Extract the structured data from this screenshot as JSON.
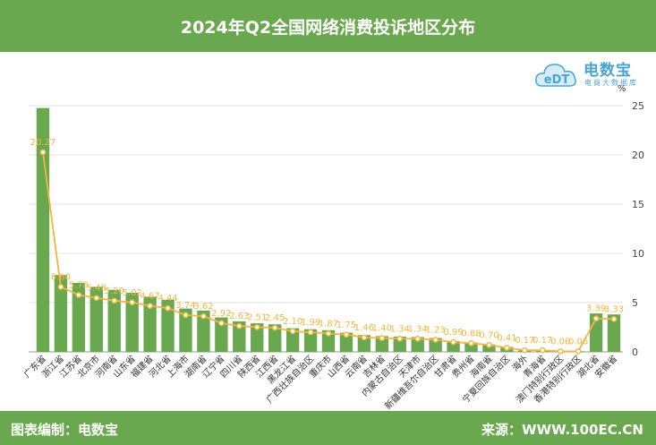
{
  "header": {
    "title": "2024年Q2全国网络消费投诉地区分布"
  },
  "footer": {
    "left": "图表编制：电数宝",
    "right": "来源：WWW.100EC.CN"
  },
  "logo": {
    "mark": "eDT",
    "name": "电数宝",
    "sub": "电商大数据库"
  },
  "colors": {
    "bar": "#6aa84f",
    "line": "#f4b540",
    "label": "#f4b540",
    "header": "#6aa84f"
  },
  "chart_data": {
    "type": "bar",
    "unit": "%",
    "ylim": [
      0,
      25
    ],
    "yticks": [
      0,
      5,
      10,
      15,
      20,
      25
    ],
    "grid": true,
    "categories": [
      "广东省",
      "浙江省",
      "江苏省",
      "北京市",
      "河南省",
      "山东省",
      "福建省",
      "河北省",
      "上海市",
      "湖南省",
      "辽宁省",
      "四川省",
      "陕西省",
      "江西省",
      "黑龙江省",
      "广西壮族自治区",
      "重庆市",
      "山西省",
      "云南省",
      "吉林省",
      "内蒙古自治区",
      "天津市",
      "新疆维吾尔自治区",
      "甘肃省",
      "贵州省",
      "海南省",
      "宁夏回族自治区",
      "海外",
      "青海省",
      "澳门特别行政区",
      "香港特别行政区",
      "湖北省",
      "安徽省"
    ],
    "series": [
      {
        "type": "bar",
        "values": [
          24.76,
          7.8,
          7.0,
          6.6,
          6.3,
          6.0,
          5.6,
          5.3,
          4.4,
          4.2,
          3.5,
          3.1,
          2.9,
          2.8,
          2.4,
          2.3,
          2.2,
          1.95,
          1.7,
          1.6,
          1.55,
          1.5,
          1.4,
          1.1,
          0.95,
          0.75,
          0.5,
          0.17,
          0.15,
          0.07,
          0.06,
          3.9,
          3.8
        ]
      },
      {
        "type": "line",
        "values": [
          20.27,
          6.6,
          5.78,
          5.48,
          5.2,
          5.02,
          4.67,
          4.44,
          3.74,
          3.62,
          2.92,
          2.63,
          2.51,
          2.45,
          2.1,
          1.99,
          1.87,
          1.75,
          1.46,
          1.4,
          1.34,
          1.34,
          1.23,
          0.99,
          0.88,
          0.7,
          0.41,
          0.17,
          0.17,
          0.06,
          0.06,
          3.39,
          3.33
        ],
        "labels": [
          "20.27",
          "6.60",
          "5.78",
          "5.48",
          "5.20",
          "5.02",
          "4.67",
          "4.44",
          "3.74",
          "3.62",
          "2.92",
          "2.63",
          "2.51",
          "2.45",
          "2.10",
          "1.99",
          "1.87",
          "1.75",
          "1.46",
          "1.40",
          "1.34",
          "1.34",
          "1.23",
          "0.99",
          "0.88",
          "0.70",
          "0.41",
          "0.17",
          "0.17",
          "0.06",
          "0.06",
          "3.39",
          "3.33"
        ]
      }
    ]
  }
}
